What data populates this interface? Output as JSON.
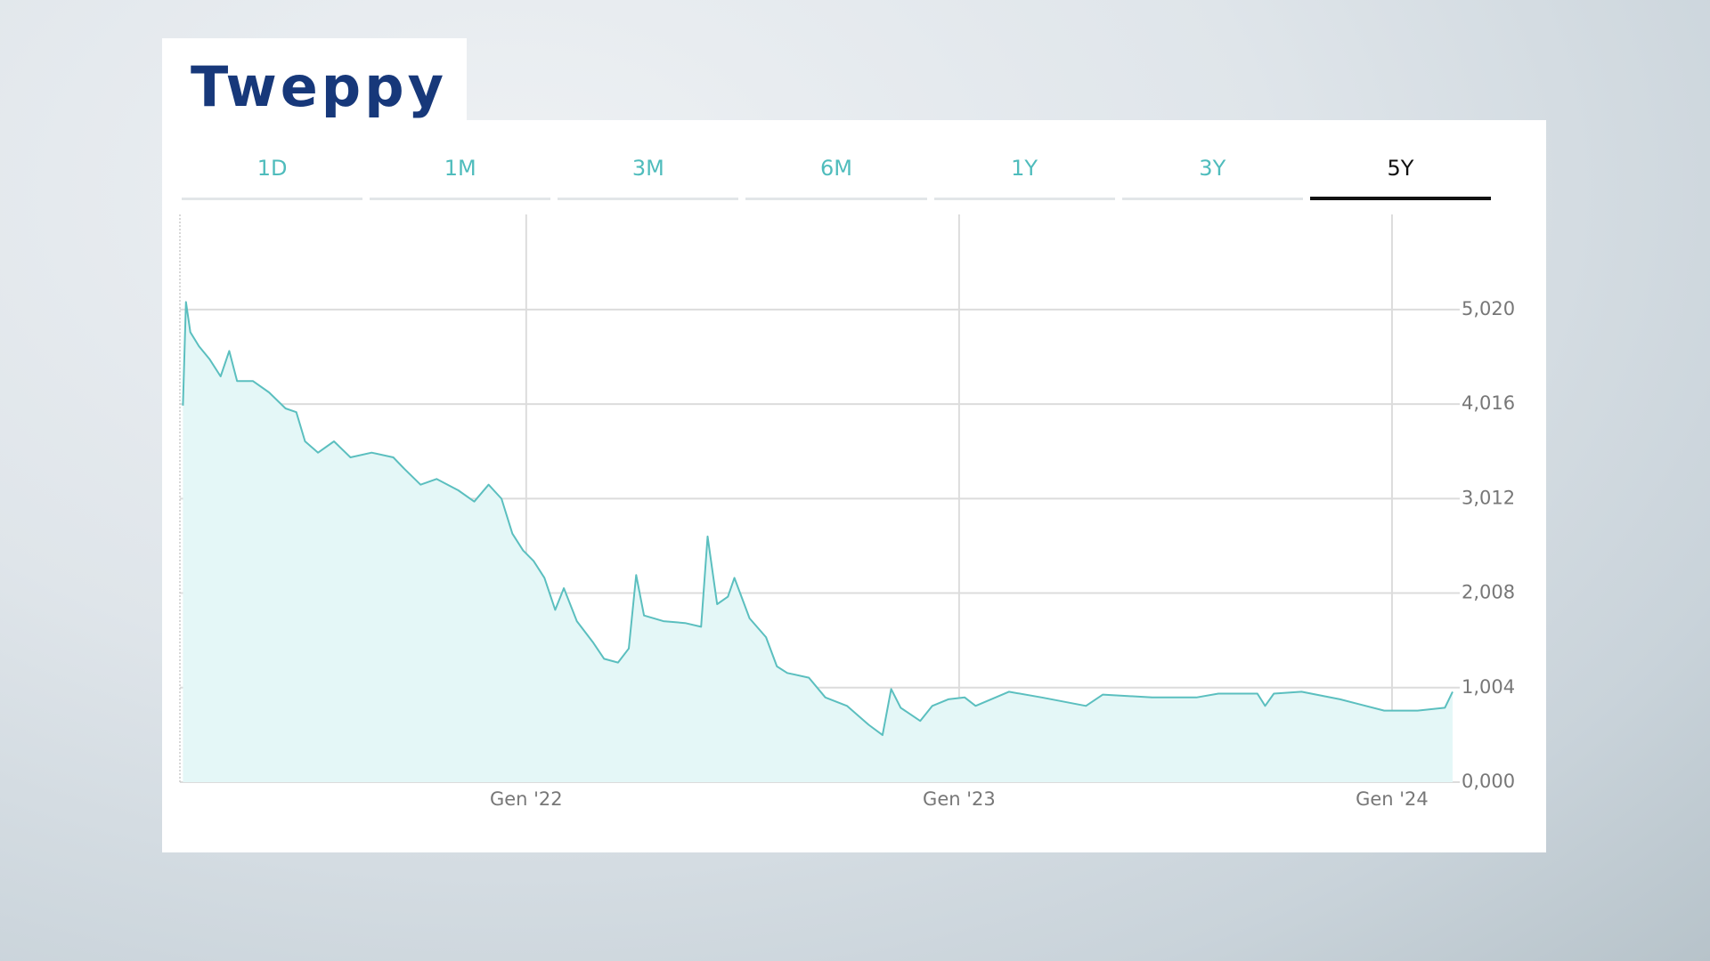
{
  "header": {
    "title": "Tweppy"
  },
  "range_tabs": {
    "options": [
      "1D",
      "1M",
      "3M",
      "6M",
      "1Y",
      "3Y",
      "5Y"
    ],
    "selected": "5Y"
  },
  "chart_data": {
    "type": "area",
    "x": [
      2021.207,
      2021.214,
      2021.224,
      2021.244,
      2021.269,
      2021.294,
      2021.314,
      2021.332,
      2021.369,
      2021.406,
      2021.444,
      2021.469,
      2021.489,
      2021.519,
      2021.556,
      2021.594,
      2021.643,
      2021.693,
      2021.718,
      2021.756,
      2021.793,
      2021.843,
      2021.88,
      2021.913,
      2021.943,
      2021.968,
      2021.993,
      2022.017,
      2022.042,
      2022.067,
      2022.087,
      2022.117,
      2022.155,
      2022.18,
      2022.212,
      2022.237,
      2022.254,
      2022.272,
      2022.317,
      2022.367,
      2022.404,
      2022.419,
      2022.441,
      2022.466,
      2022.481,
      2022.516,
      2022.554,
      2022.579,
      2022.603,
      2022.653,
      2022.691,
      2022.741,
      2022.791,
      2022.823,
      2022.843,
      2022.865,
      2022.91,
      2022.938,
      2022.975,
      2023.013,
      2023.038,
      2023.115,
      2023.191,
      2023.293,
      2023.332,
      2023.446,
      2023.548,
      2023.599,
      2023.689,
      2023.707,
      2023.727,
      2023.791,
      2023.88,
      2023.982,
      2024.059,
      2024.122,
      2024.14
    ],
    "values": [
      4.0,
      5.1,
      4.78,
      4.63,
      4.49,
      4.31,
      4.58,
      4.26,
      4.26,
      4.14,
      3.97,
      3.93,
      3.62,
      3.5,
      3.62,
      3.45,
      3.5,
      3.45,
      3.33,
      3.16,
      3.22,
      3.1,
      2.98,
      3.16,
      3.01,
      2.64,
      2.46,
      2.35,
      2.17,
      1.83,
      2.06,
      1.71,
      1.48,
      1.31,
      1.27,
      1.42,
      2.2,
      1.77,
      1.71,
      1.69,
      1.65,
      2.61,
      1.89,
      1.97,
      2.17,
      1.74,
      1.54,
      1.23,
      1.16,
      1.11,
      0.9,
      0.81,
      0.61,
      0.5,
      0.99,
      0.79,
      0.65,
      0.81,
      0.88,
      0.9,
      0.81,
      0.96,
      0.9,
      0.81,
      0.93,
      0.9,
      0.9,
      0.94,
      0.94,
      0.81,
      0.94,
      0.96,
      0.88,
      0.76,
      0.76,
      0.79,
      0.96
    ],
    "color": "#5bbfbf",
    "fill_color": "#e4f7f7",
    "xlim": [
      2021.2,
      2024.14
    ],
    "xticks": [
      {
        "value": 2022,
        "label": "Gen '22"
      },
      {
        "value": 2023,
        "label": "Gen '23"
      },
      {
        "value": 2024,
        "label": "Gen '24"
      }
    ],
    "ylim": [
      0,
      6.03
    ],
    "yticks": [
      {
        "value": 0,
        "label": "0,000"
      },
      {
        "value": 1.004,
        "label": "1,004"
      },
      {
        "value": 2.008,
        "label": "2,008"
      },
      {
        "value": 3.012,
        "label": "3,012"
      },
      {
        "value": 4.016,
        "label": "4,016"
      },
      {
        "value": 5.02,
        "label": "5,020"
      }
    ],
    "grid": true
  }
}
